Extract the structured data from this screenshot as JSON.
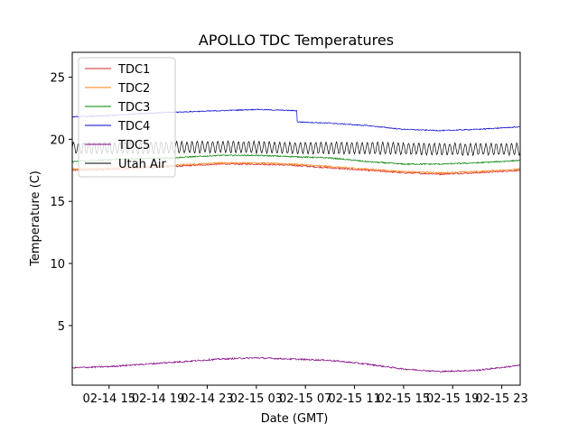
{
  "chart_data": {
    "type": "line",
    "title": "APOLLO TDC Temperatures",
    "xlabel": "Date (GMT)",
    "ylabel": "Temperature (C)",
    "xlim_hours": [
      0,
      36.5
    ],
    "ylim": [
      0.2,
      27
    ],
    "x_ticks": [
      {
        "hour": 3,
        "label": "02-14 15"
      },
      {
        "hour": 7,
        "label": "02-14 19"
      },
      {
        "hour": 11,
        "label": "02-14 23"
      },
      {
        "hour": 15,
        "label": "02-15 03"
      },
      {
        "hour": 19,
        "label": "02-15 07"
      },
      {
        "hour": 23,
        "label": "02-15 11"
      },
      {
        "hour": 27,
        "label": "02-15 15"
      },
      {
        "hour": 31,
        "label": "02-15 19"
      },
      {
        "hour": 35,
        "label": "02-15 23"
      }
    ],
    "y_ticks": [
      5,
      10,
      15,
      20,
      25
    ],
    "legend_position": "top-left",
    "series": [
      {
        "name": "TDC1",
        "color": "#d62728",
        "x": [
          0,
          4,
          8,
          12,
          15,
          18,
          21,
          24,
          27,
          30,
          33,
          36.5
        ],
        "y": [
          17.5,
          17.6,
          17.8,
          18.0,
          18.0,
          17.9,
          17.7,
          17.5,
          17.3,
          17.2,
          17.3,
          17.5
        ],
        "noise": 0.06
      },
      {
        "name": "TDC2",
        "color": "#ff7f0e",
        "x": [
          0,
          4,
          8,
          12,
          15,
          18,
          21,
          24,
          27,
          30,
          33,
          36.5
        ],
        "y": [
          17.6,
          17.7,
          17.9,
          18.1,
          18.1,
          18.0,
          17.8,
          17.6,
          17.4,
          17.3,
          17.4,
          17.6
        ],
        "noise": 0.06
      },
      {
        "name": "TDC3",
        "color": "#008000",
        "x": [
          0,
          4,
          8,
          12,
          15,
          18,
          21,
          24,
          27,
          30,
          33,
          36.5
        ],
        "y": [
          18.2,
          18.4,
          18.5,
          18.7,
          18.7,
          18.6,
          18.5,
          18.2,
          18.0,
          18.0,
          18.1,
          18.3
        ],
        "noise": 0.05
      },
      {
        "name": "TDC4",
        "color": "#0000cc",
        "x": [
          0,
          3,
          6,
          9,
          12,
          15,
          18.3,
          18.31,
          21,
          24,
          27,
          30,
          33,
          36.5
        ],
        "y": [
          21.8,
          21.9,
          22.1,
          22.2,
          22.3,
          22.4,
          22.3,
          21.4,
          21.3,
          21.1,
          20.8,
          20.7,
          20.8,
          21.0
        ],
        "noise": 0.04
      },
      {
        "name": "TDC5",
        "color": "#800080",
        "x": [
          0,
          3,
          6,
          9,
          12,
          15,
          18,
          21,
          24,
          27,
          30,
          33,
          36.5
        ],
        "y": [
          1.6,
          1.7,
          1.9,
          2.1,
          2.3,
          2.4,
          2.3,
          2.2,
          1.9,
          1.5,
          1.3,
          1.4,
          1.8
        ],
        "noise": 0.06
      },
      {
        "name": "Utah Air",
        "color": "#000000",
        "x": [
          0,
          6,
          12,
          18,
          24,
          30,
          36.5
        ],
        "y": [
          19.3,
          19.3,
          19.4,
          19.3,
          19.3,
          19.2,
          19.2
        ],
        "oscillation": 0.45,
        "period_hours": 0.42
      }
    ]
  }
}
